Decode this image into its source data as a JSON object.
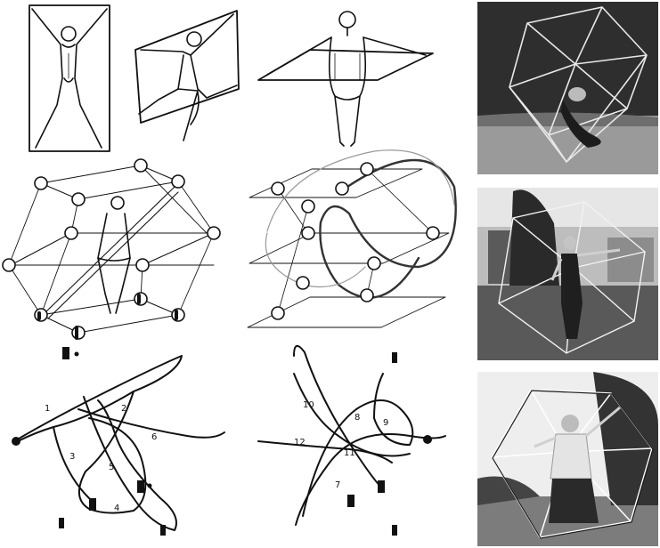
{
  "page": {
    "background": "#ffffff",
    "ink": "#111111"
  },
  "figures": [
    {
      "id": "a",
      "description_icon": "figure-in-vertical-door-plane-icon"
    },
    {
      "id": "b",
      "description_icon": "figure-in-sagittal-wheel-plane-icon"
    },
    {
      "id": "c",
      "description_icon": "figure-in-horizontal-table-plane-icon"
    },
    {
      "id": "d",
      "description_icon": "figure-in-icosahedron-with-diameter-icon"
    },
    {
      "id": "e",
      "description_icon": "icosahedron-with-swinging-trace-icon"
    },
    {
      "id": "f",
      "description_icon": "numbered-path-left-icon"
    },
    {
      "id": "g",
      "description_icon": "numbered-path-right-icon"
    }
  ],
  "path_left": {
    "numbers": [
      "1",
      "2",
      "3",
      "4",
      "5",
      "6"
    ]
  },
  "path_right": {
    "numbers": [
      "7",
      "8",
      "9",
      "10",
      "11",
      "12"
    ]
  },
  "photos": [
    {
      "id": "photo-1",
      "icon": "dancer-in-icosahedron-photo-icon"
    },
    {
      "id": "photo-2",
      "icon": "dancer-in-icosahedron-before-building-photo-icon"
    },
    {
      "id": "photo-3",
      "icon": "woman-in-icosahedron-photo-icon"
    }
  ],
  "colors": {
    "photo_dark": "#2b2b2b",
    "photo_mid": "#8a8a8a",
    "photo_light": "#d8d8d8",
    "frame": "#f4f4f4"
  }
}
